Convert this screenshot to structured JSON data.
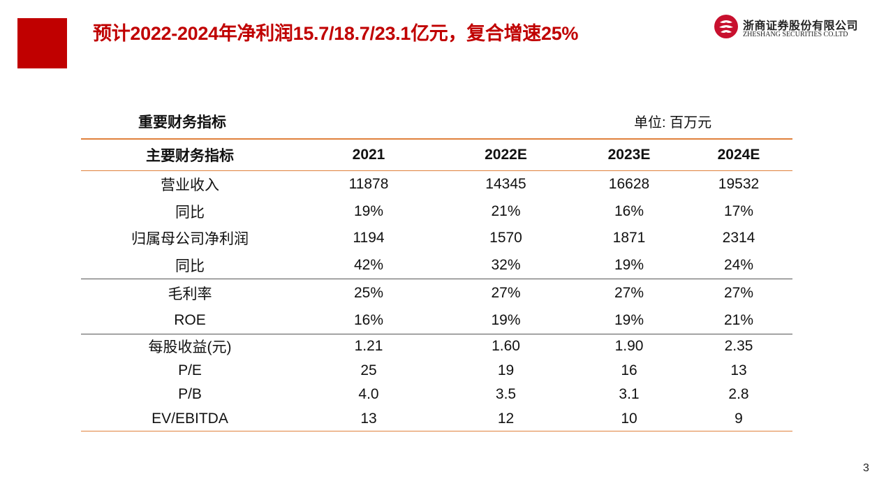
{
  "header": {
    "title": "预计2022-2024年净利润15.7/18.7/23.1亿元，复合增速25%",
    "accent_color": "#c00000",
    "logo": {
      "name_cn": "浙商证券股份有限公司",
      "name_en": "ZHESHANG SECURITIES CO.LTD"
    }
  },
  "table": {
    "heading": "重要财务指标",
    "unit": "单位: 百万元",
    "columns": [
      "主要财务指标",
      "2021",
      "2022E",
      "2023E",
      "2024E"
    ],
    "rows": [
      {
        "label": "营业收入",
        "values": [
          "11878",
          "14345",
          "16628",
          "19532"
        ]
      },
      {
        "label": "同比",
        "values": [
          "19%",
          "21%",
          "16%",
          "17%"
        ]
      },
      {
        "label": "归属母公司净利润",
        "values": [
          "1194",
          "1570",
          "1871",
          "2314"
        ]
      },
      {
        "label": "同比",
        "values": [
          "42%",
          "32%",
          "19%",
          "24%"
        ]
      },
      {
        "label": "毛利率",
        "values": [
          "25%",
          "27%",
          "27%",
          "27%"
        ]
      },
      {
        "label": "ROE",
        "values": [
          "16%",
          "19%",
          "19%",
          "21%"
        ]
      },
      {
        "label": "每股收益(元)",
        "values": [
          "1.21",
          "1.60",
          "1.90",
          "2.35"
        ]
      },
      {
        "label": "P/E",
        "values": [
          "25",
          "19",
          "16",
          "13"
        ]
      },
      {
        "label": "P/B",
        "values": [
          "4.0",
          "3.5",
          "3.1",
          "2.8"
        ]
      },
      {
        "label": "EV/EBITDA",
        "values": [
          "13",
          "12",
          "10",
          "9"
        ]
      }
    ],
    "border_color": "#e0813c"
  },
  "footer": {
    "page_number": "3"
  }
}
